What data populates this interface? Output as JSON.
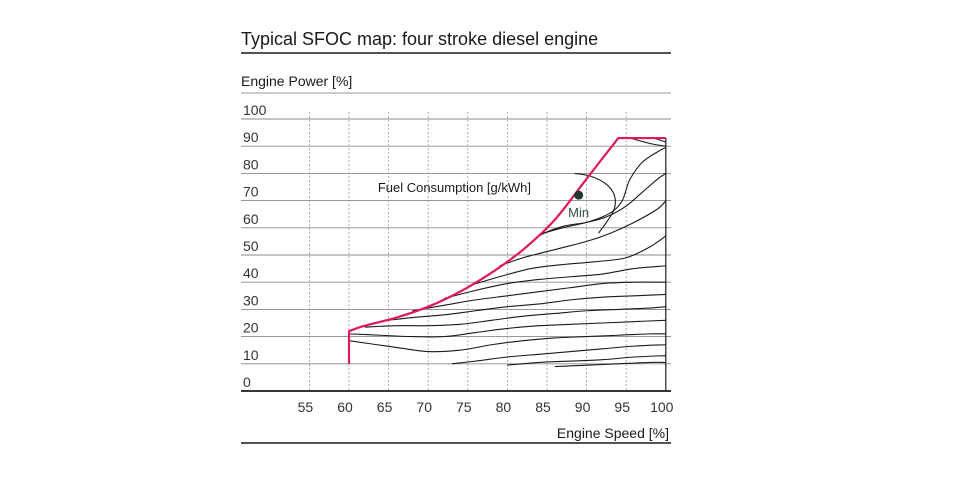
{
  "chart_data": {
    "type": "line",
    "title": "Typical SFOC map: four stroke diesel engine",
    "ylabel": "Engine Power [%]",
    "xlabel": "Engine Speed [%]",
    "annotation": "Fuel Consumption [g/kWh]",
    "min_label": "Min",
    "min_point": {
      "x": 89.5,
      "y": 72
    },
    "xlim": [
      50,
      101
    ],
    "ylim": [
      0,
      104
    ],
    "xticks": [
      55,
      60,
      65,
      70,
      75,
      80,
      85,
      90,
      95,
      100
    ],
    "yticks": [
      0,
      10,
      20,
      30,
      40,
      50,
      60,
      70,
      80,
      90,
      100
    ],
    "grid": true,
    "boundary": {
      "color": "#e0195a",
      "x": [
        60,
        60,
        62,
        66,
        70,
        74,
        78,
        82,
        86,
        90,
        94,
        100
      ],
      "y": [
        10,
        22,
        24,
        27,
        31,
        36.5,
        43.5,
        52,
        63,
        78,
        93,
        93
      ]
    },
    "contours": {
      "color": "#1a1a1a",
      "lines": [
        {
          "x": [
            60,
            66,
            70,
            74,
            78,
            82,
            86,
            90,
            94,
            98,
            100
          ],
          "y": [
            18.5,
            16,
            14.5,
            15,
            17,
            18.5,
            19.5,
            20,
            20.5,
            21,
            21
          ]
        },
        {
          "x": [
            60,
            64,
            68,
            72,
            76,
            80,
            84,
            88,
            92,
            96,
            100
          ],
          "y": [
            21,
            20.5,
            20,
            20,
            21.5,
            23,
            24,
            24.5,
            25,
            25.5,
            26
          ]
        },
        {
          "x": [
            62,
            66,
            70,
            74,
            78,
            82,
            86,
            90,
            94,
            98,
            100
          ],
          "y": [
            23.5,
            24,
            24,
            24.5,
            26,
            27.5,
            28.5,
            29.5,
            30,
            30.5,
            31
          ]
        },
        {
          "x": [
            65,
            68,
            72,
            76,
            80,
            84,
            88,
            92,
            96,
            100
          ],
          "y": [
            26,
            27,
            28,
            29.5,
            31,
            32,
            33.5,
            34.5,
            35,
            35.5
          ]
        },
        {
          "x": [
            68,
            72,
            76,
            80,
            84,
            88,
            92,
            96,
            100
          ],
          "y": [
            29.5,
            31.5,
            33.5,
            35,
            36.5,
            38,
            39.5,
            40,
            40
          ]
        },
        {
          "x": [
            72,
            76,
            80,
            84,
            88,
            92,
            96,
            100
          ],
          "y": [
            34,
            37,
            39.5,
            41,
            42,
            43,
            45,
            46
          ]
        },
        {
          "x": [
            75.5,
            79,
            83,
            87,
            91,
            95,
            98,
            100
          ],
          "y": [
            39,
            42,
            45,
            46.5,
            47.5,
            49,
            53,
            57
          ]
        },
        {
          "x": [
            79,
            82,
            86,
            90,
            93,
            96,
            99,
            100
          ],
          "y": [
            46,
            49,
            52,
            55,
            58,
            62,
            67,
            70
          ]
        },
        {
          "x": [
            81.5,
            84,
            87,
            90,
            92.5,
            95,
            97,
            99,
            100
          ],
          "y": [
            50.5,
            57,
            60.5,
            62,
            64,
            68,
            73,
            78,
            80
          ]
        },
        {
          "x": [
            84.5,
            87,
            90,
            92,
            93.5,
            94.5,
            95,
            95.5,
            97,
            99,
            100
          ],
          "y": [
            58,
            60,
            62,
            64,
            66.5,
            70,
            74,
            78,
            84,
            88,
            89.5
          ]
        },
        {
          "x": [
            88.5,
            90.5,
            92.5,
            93.5,
            93.5,
            92.5,
            91.5
          ],
          "y": [
            80,
            79,
            76,
            72,
            67,
            62,
            58
          ]
        },
        {
          "x": [
            95.5,
            98,
            100
          ],
          "y": [
            93,
            91,
            90
          ]
        },
        {
          "x": [
            98.5,
            100
          ],
          "y": [
            93,
            91.5
          ]
        },
        {
          "x": [
            73,
            76,
            80,
            84,
            88,
            92,
            96,
            100
          ],
          "y": [
            10,
            11,
            12.5,
            13.5,
            14.5,
            15.5,
            16.5,
            17
          ]
        },
        {
          "x": [
            80,
            84,
            88,
            92,
            96,
            100
          ],
          "y": [
            9.5,
            10.5,
            11,
            11.5,
            12.5,
            13
          ]
        },
        {
          "x": [
            86,
            90,
            94,
            98,
            100
          ],
          "y": [
            9,
            9.5,
            10,
            10.5,
            10.5
          ]
        }
      ]
    }
  }
}
